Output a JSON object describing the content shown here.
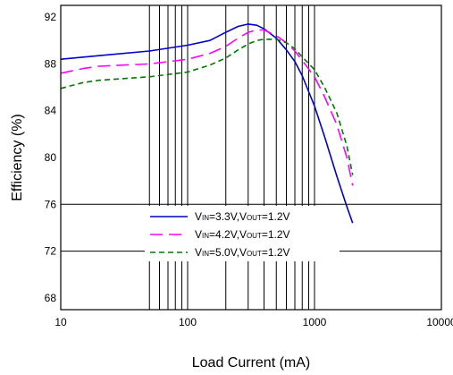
{
  "chart_data": {
    "type": "line",
    "xlabel": "Load Current (mA)",
    "ylabel": "Efficiency (%)",
    "xscale": "log",
    "xlim": [
      10,
      10000
    ],
    "ylim": [
      67,
      93
    ],
    "grid": "partial",
    "x_ticks": [
      10,
      100,
      1000,
      10000
    ],
    "x_tick_labels": [
      "10",
      "100",
      "1000",
      "10000"
    ],
    "y_ticks": [
      68,
      72,
      76,
      80,
      84,
      88,
      92
    ],
    "y_tick_labels": [
      "68",
      "72",
      "76",
      "80",
      "84",
      "88",
      "92"
    ],
    "legend_position": "bottom-center",
    "series": [
      {
        "name": "VIN=3.3V,VOUT=1.2V",
        "name_parts": [
          "V",
          "IN",
          "=3.3V,V",
          "OUT",
          "=1.2V"
        ],
        "color": "#0000cc",
        "dash": "solid",
        "x": [
          10,
          20,
          50,
          100,
          150,
          200,
          250,
          300,
          350,
          400,
          500,
          600,
          700,
          800,
          1000,
          1200,
          1500,
          1800,
          2000
        ],
        "y": [
          88.4,
          88.7,
          89.1,
          89.6,
          90.0,
          90.7,
          91.2,
          91.4,
          91.3,
          91.0,
          90.2,
          89.2,
          88.2,
          87.0,
          84.4,
          81.8,
          78.4,
          75.8,
          74.4
        ]
      },
      {
        "name": "VIN=4.2V,VOUT=1.2V",
        "name_parts": [
          "V",
          "IN",
          "=4.2V,V",
          "OUT",
          "=1.2V"
        ],
        "color": "#ff00ff",
        "dash": "long-dash",
        "x": [
          10,
          15,
          20,
          50,
          100,
          150,
          200,
          250,
          300,
          350,
          400,
          500,
          600,
          700,
          800,
          1000,
          1200,
          1500,
          1800,
          2000
        ],
        "y": [
          87.2,
          87.6,
          87.8,
          88.0,
          88.4,
          88.9,
          89.5,
          90.2,
          90.7,
          90.9,
          90.9,
          90.4,
          89.8,
          89.1,
          88.3,
          86.9,
          85.2,
          82.8,
          80.0,
          77.6
        ]
      },
      {
        "name": "VIN=5.0V,VOUT=1.2V",
        "name_parts": [
          "V",
          "IN",
          "=5.0V,V",
          "OUT",
          "=1.2V"
        ],
        "color": "#007a00",
        "dash": "short-dash",
        "x": [
          10,
          15,
          20,
          50,
          100,
          150,
          200,
          250,
          300,
          350,
          400,
          500,
          600,
          700,
          800,
          1000,
          1200,
          1500,
          1800,
          2000
        ],
        "y": [
          85.9,
          86.4,
          86.6,
          86.9,
          87.3,
          87.9,
          88.5,
          89.2,
          89.7,
          90.0,
          90.1,
          90.1,
          89.8,
          89.3,
          88.6,
          87.5,
          86.0,
          83.8,
          81.0,
          78.5
        ]
      }
    ]
  }
}
